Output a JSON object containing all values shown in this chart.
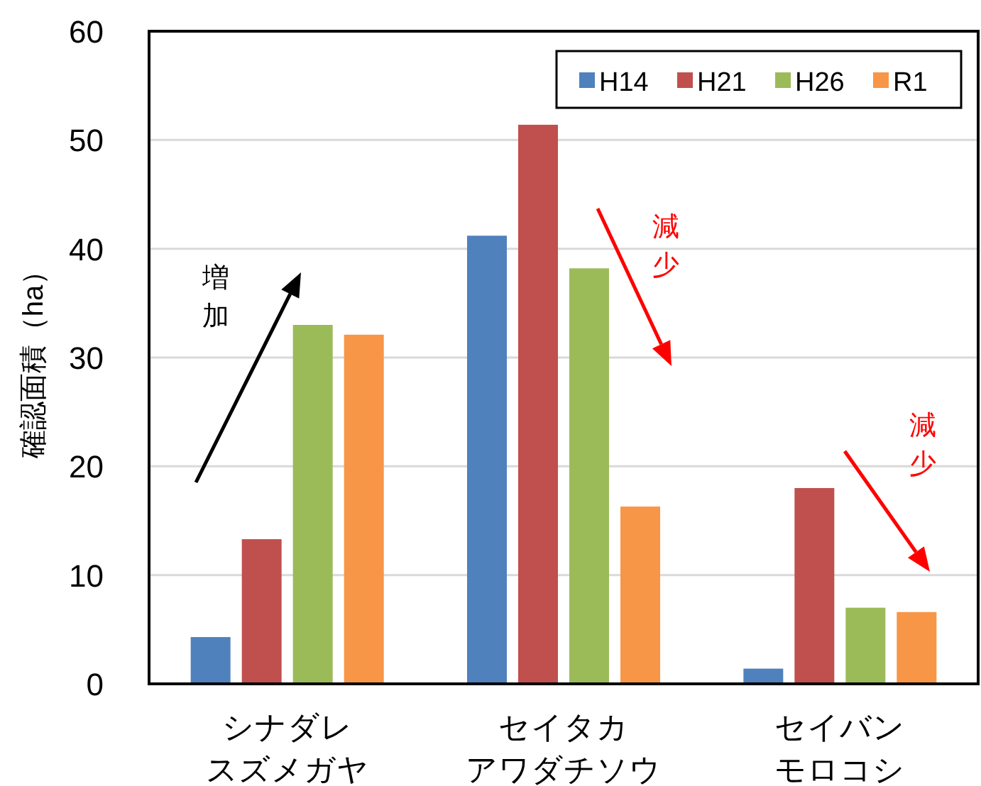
{
  "chart_data": {
    "type": "bar",
    "ylabel": "確認面積（ha）",
    "categories": [
      "シナダレスズメガヤ",
      "セイタカアワダチソウ",
      "セイバンモロコシ"
    ],
    "series": [
      {
        "name": "H14",
        "color": "#4f81bd",
        "values": [
          4.3,
          41.2,
          1.4
        ]
      },
      {
        "name": "H21",
        "color": "#c0504d",
        "values": [
          13.3,
          51.4,
          18.0
        ]
      },
      {
        "name": "H26",
        "color": "#9bbb59",
        "values": [
          33.0,
          38.2,
          7.0
        ]
      },
      {
        "name": "R1",
        "color": "#f79646",
        "values": [
          32.1,
          16.3,
          6.6
        ]
      }
    ],
    "ylim": [
      0,
      60
    ],
    "yticks": [
      0,
      10,
      20,
      30,
      40,
      50,
      60
    ],
    "grid": "y",
    "legend": "top right",
    "annotations": [
      "増加",
      "減少",
      "減少"
    ]
  }
}
